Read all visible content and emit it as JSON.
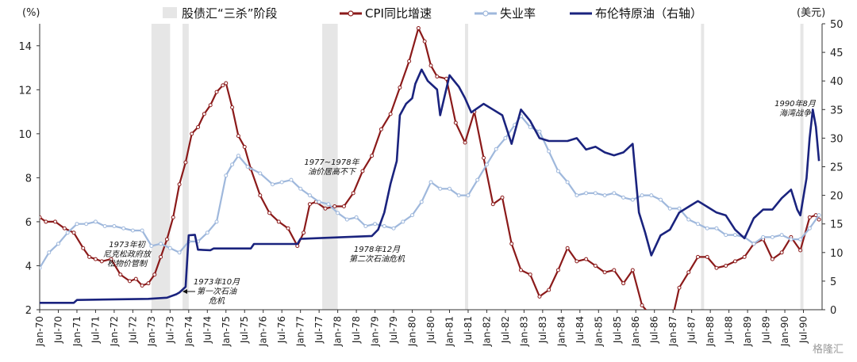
{
  "chart_data": {
    "type": "line",
    "title": "",
    "left_axis": {
      "unit_label": "(%)",
      "ylim": [
        2,
        15
      ],
      "ticks": [
        2,
        4,
        6,
        8,
        10,
        12,
        14
      ]
    },
    "right_axis": {
      "unit_label": "(美元)",
      "ylim": [
        0,
        50
      ],
      "ticks": [
        0,
        5,
        10,
        15,
        20,
        25,
        30,
        35,
        40,
        45,
        50
      ]
    },
    "x_range": [
      "Jan-70",
      "Jan-91"
    ],
    "x_ticks": [
      "Jan-70",
      "Jul-70",
      "Jan-71",
      "Jul-71",
      "Jan-72",
      "Jul-72",
      "Jan-73",
      "Jul-73",
      "Jan-74",
      "Jul-74",
      "Jan-75",
      "Jul-75",
      "Jan-76",
      "Jul-76",
      "Jan-77",
      "Jul-77",
      "Jan-78",
      "Jul-78",
      "Jan-79",
      "Jul-79",
      "Jan-80",
      "Jul-80",
      "Jan-81",
      "Jul-81",
      "Jan-82",
      "Jul-82",
      "Jan-83",
      "Jul-83",
      "Jan-84",
      "Jul-84",
      "Jan-85",
      "Jul-85",
      "Jan-86",
      "Jul-86",
      "Jan-87",
      "Jul-87",
      "Jan-88",
      "Jul-88",
      "Jan-89",
      "Jul-89",
      "Jan-90",
      "Jul-90"
    ],
    "legend": {
      "placement": "top",
      "items": [
        {
          "label": "股债汇“三杀”阶段",
          "kind": "band",
          "color": "#e6e6e6"
        },
        {
          "label": "CPI同比增速",
          "kind": "line-marker",
          "color": "#8b1a1a"
        },
        {
          "label": "失业率",
          "kind": "line-marker",
          "color": "#9fb8dc"
        },
        {
          "label": "布伦特原油（右轴）",
          "kind": "line",
          "color": "#1a237e"
        }
      ]
    },
    "shaded_periods": [
      [
        "1973-01",
        "1973-07"
      ],
      [
        "1973-11",
        "1974-01"
      ],
      [
        "1977-08",
        "1978-01"
      ],
      [
        "1981-06",
        "1981-07"
      ],
      [
        "1987-10",
        "1987-11"
      ],
      [
        "1990-06",
        "1990-07"
      ]
    ],
    "series": [
      {
        "name": "CPI同比增速",
        "axis": "left",
        "color": "#8b1a1a",
        "points": [
          [
            "1970-01",
            6.2
          ],
          [
            "1970-03",
            6.0
          ],
          [
            "1970-06",
            6.0
          ],
          [
            "1970-09",
            5.7
          ],
          [
            "1970-12",
            5.5
          ],
          [
            "1971-03",
            4.8
          ],
          [
            "1971-05",
            4.4
          ],
          [
            "1971-07",
            4.3
          ],
          [
            "1971-09",
            4.2
          ],
          [
            "1971-12",
            4.3
          ],
          [
            "1972-03",
            3.6
          ],
          [
            "1972-06",
            3.3
          ],
          [
            "1972-08",
            3.4
          ],
          [
            "1972-10",
            3.1
          ],
          [
            "1972-12",
            3.2
          ],
          [
            "1973-02",
            3.6
          ],
          [
            "1973-04",
            4.4
          ],
          [
            "1973-06",
            5.2
          ],
          [
            "1973-08",
            6.2
          ],
          [
            "1973-10",
            7.7
          ],
          [
            "1973-12",
            8.7
          ],
          [
            "1974-02",
            10.0
          ],
          [
            "1974-04",
            10.3
          ],
          [
            "1974-06",
            10.9
          ],
          [
            "1974-08",
            11.3
          ],
          [
            "1974-10",
            11.9
          ],
          [
            "1974-12",
            12.2
          ],
          [
            "1975-01",
            12.3
          ],
          [
            "1975-03",
            11.2
          ],
          [
            "1975-05",
            9.9
          ],
          [
            "1975-07",
            9.4
          ],
          [
            "1975-09",
            8.4
          ],
          [
            "1975-12",
            7.2
          ],
          [
            "1976-03",
            6.4
          ],
          [
            "1976-06",
            6.0
          ],
          [
            "1976-09",
            5.7
          ],
          [
            "1976-12",
            4.9
          ],
          [
            "1977-02",
            5.5
          ],
          [
            "1977-04",
            6.8
          ],
          [
            "1977-06",
            6.9
          ],
          [
            "1977-09",
            6.6
          ],
          [
            "1977-12",
            6.7
          ],
          [
            "1978-03",
            6.7
          ],
          [
            "1978-06",
            7.3
          ],
          [
            "1978-09",
            8.3
          ],
          [
            "1978-12",
            9.0
          ],
          [
            "1979-03",
            10.2
          ],
          [
            "1979-06",
            10.9
          ],
          [
            "1979-09",
            12.1
          ],
          [
            "1979-12",
            13.3
          ],
          [
            "1980-03",
            14.8
          ],
          [
            "1980-05",
            14.2
          ],
          [
            "1980-07",
            13.1
          ],
          [
            "1980-09",
            12.6
          ],
          [
            "1980-12",
            12.5
          ],
          [
            "1981-03",
            10.5
          ],
          [
            "1981-06",
            9.6
          ],
          [
            "1981-09",
            11.0
          ],
          [
            "1981-12",
            8.9
          ],
          [
            "1982-03",
            6.8
          ],
          [
            "1982-06",
            7.1
          ],
          [
            "1982-09",
            5.0
          ],
          [
            "1982-12",
            3.8
          ],
          [
            "1983-03",
            3.6
          ],
          [
            "1983-06",
            2.6
          ],
          [
            "1983-09",
            2.9
          ],
          [
            "1983-12",
            3.8
          ],
          [
            "1984-03",
            4.8
          ],
          [
            "1984-06",
            4.2
          ],
          [
            "1984-09",
            4.3
          ],
          [
            "1984-12",
            4.0
          ],
          [
            "1985-03",
            3.7
          ],
          [
            "1985-06",
            3.8
          ],
          [
            "1985-09",
            3.2
          ],
          [
            "1985-12",
            3.8
          ],
          [
            "1986-03",
            2.2
          ],
          [
            "1986-06",
            1.7
          ],
          [
            "1986-09",
            1.8
          ],
          [
            "1986-12",
            1.1
          ],
          [
            "1987-03",
            3.0
          ],
          [
            "1987-06",
            3.7
          ],
          [
            "1987-09",
            4.4
          ],
          [
            "1987-12",
            4.4
          ],
          [
            "1988-03",
            3.9
          ],
          [
            "1988-06",
            4.0
          ],
          [
            "1988-09",
            4.2
          ],
          [
            "1988-12",
            4.4
          ],
          [
            "1989-03",
            5.0
          ],
          [
            "1989-06",
            5.2
          ],
          [
            "1989-09",
            4.3
          ],
          [
            "1989-12",
            4.6
          ],
          [
            "1990-03",
            5.3
          ],
          [
            "1990-06",
            4.7
          ],
          [
            "1990-09",
            6.2
          ],
          [
            "1990-11",
            6.3
          ],
          [
            "1990-12",
            6.1
          ]
        ]
      },
      {
        "name": "失业率",
        "axis": "left",
        "color": "#9fb8dc",
        "points": [
          [
            "1970-01",
            3.9
          ],
          [
            "1970-04",
            4.6
          ],
          [
            "1970-07",
            5.0
          ],
          [
            "1970-10",
            5.5
          ],
          [
            "1971-01",
            5.9
          ],
          [
            "1971-04",
            5.9
          ],
          [
            "1971-07",
            6.0
          ],
          [
            "1971-10",
            5.8
          ],
          [
            "1972-01",
            5.8
          ],
          [
            "1972-04",
            5.7
          ],
          [
            "1972-07",
            5.6
          ],
          [
            "1972-10",
            5.6
          ],
          [
            "1973-01",
            4.9
          ],
          [
            "1973-04",
            5.0
          ],
          [
            "1973-07",
            4.8
          ],
          [
            "1973-10",
            4.6
          ],
          [
            "1974-01",
            5.1
          ],
          [
            "1974-04",
            5.1
          ],
          [
            "1974-07",
            5.5
          ],
          [
            "1974-10",
            6.0
          ],
          [
            "1975-01",
            8.1
          ],
          [
            "1975-03",
            8.6
          ],
          [
            "1975-05",
            9.0
          ],
          [
            "1975-08",
            8.5
          ],
          [
            "1975-12",
            8.2
          ],
          [
            "1976-04",
            7.7
          ],
          [
            "1976-07",
            7.8
          ],
          [
            "1976-10",
            7.9
          ],
          [
            "1977-01",
            7.5
          ],
          [
            "1977-04",
            7.2
          ],
          [
            "1977-07",
            6.9
          ],
          [
            "1977-10",
            6.8
          ],
          [
            "1978-01",
            6.4
          ],
          [
            "1978-04",
            6.1
          ],
          [
            "1978-07",
            6.2
          ],
          [
            "1978-10",
            5.8
          ],
          [
            "1979-01",
            5.9
          ],
          [
            "1979-04",
            5.8
          ],
          [
            "1979-07",
            5.7
          ],
          [
            "1979-10",
            6.0
          ],
          [
            "1980-01",
            6.3
          ],
          [
            "1980-04",
            6.9
          ],
          [
            "1980-07",
            7.8
          ],
          [
            "1980-10",
            7.5
          ],
          [
            "1981-01",
            7.5
          ],
          [
            "1981-04",
            7.2
          ],
          [
            "1981-07",
            7.2
          ],
          [
            "1981-10",
            7.9
          ],
          [
            "1982-01",
            8.6
          ],
          [
            "1982-04",
            9.3
          ],
          [
            "1982-07",
            9.8
          ],
          [
            "1982-10",
            10.4
          ],
          [
            "1982-12",
            10.8
          ],
          [
            "1983-03",
            10.3
          ],
          [
            "1983-06",
            10.1
          ],
          [
            "1983-09",
            9.2
          ],
          [
            "1983-12",
            8.3
          ],
          [
            "1984-03",
            7.8
          ],
          [
            "1984-06",
            7.2
          ],
          [
            "1984-09",
            7.3
          ],
          [
            "1984-12",
            7.3
          ],
          [
            "1985-03",
            7.2
          ],
          [
            "1985-06",
            7.3
          ],
          [
            "1985-09",
            7.1
          ],
          [
            "1985-12",
            7.0
          ],
          [
            "1986-03",
            7.2
          ],
          [
            "1986-06",
            7.2
          ],
          [
            "1986-09",
            7.0
          ],
          [
            "1986-12",
            6.6
          ],
          [
            "1987-03",
            6.6
          ],
          [
            "1987-06",
            6.1
          ],
          [
            "1987-09",
            5.9
          ],
          [
            "1987-12",
            5.7
          ],
          [
            "1988-03",
            5.7
          ],
          [
            "1988-06",
            5.4
          ],
          [
            "1988-09",
            5.4
          ],
          [
            "1988-12",
            5.3
          ],
          [
            "1989-03",
            5.0
          ],
          [
            "1989-06",
            5.3
          ],
          [
            "1989-09",
            5.3
          ],
          [
            "1989-12",
            5.4
          ],
          [
            "1990-03",
            5.2
          ],
          [
            "1990-06",
            5.2
          ],
          [
            "1990-09",
            5.7
          ],
          [
            "1990-12",
            6.3
          ]
        ]
      },
      {
        "name": "布伦特原油（右轴）",
        "axis": "right",
        "color": "#1a237e",
        "points": [
          [
            "1970-01",
            1.2
          ],
          [
            "1970-12",
            1.2
          ],
          [
            "1971-01",
            1.7
          ],
          [
            "1972-12",
            1.9
          ],
          [
            "1973-06",
            2.1
          ],
          [
            "1973-09",
            2.7
          ],
          [
            "1973-10",
            3.0
          ],
          [
            "1973-12",
            4.0
          ],
          [
            "1974-01",
            13.0
          ],
          [
            "1974-03",
            13.1
          ],
          [
            "1974-04",
            10.5
          ],
          [
            "1974-08",
            10.4
          ],
          [
            "1974-09",
            10.7
          ],
          [
            "1975-09",
            10.7
          ],
          [
            "1975-10",
            11.5
          ],
          [
            "1976-12",
            11.5
          ],
          [
            "1977-01",
            12.4
          ],
          [
            "1978-12",
            12.9
          ],
          [
            "1979-02",
            14.0
          ],
          [
            "1979-04",
            17.0
          ],
          [
            "1979-06",
            22.0
          ],
          [
            "1979-08",
            26.0
          ],
          [
            "1979-09",
            34.0
          ],
          [
            "1979-11",
            36.0
          ],
          [
            "1980-01",
            37.0
          ],
          [
            "1980-02",
            39.5
          ],
          [
            "1980-04",
            42.0
          ],
          [
            "1980-06",
            40.0
          ],
          [
            "1980-09",
            38.5
          ],
          [
            "1980-10",
            34.0
          ],
          [
            "1981-01",
            41.0
          ],
          [
            "1981-04",
            39.0
          ],
          [
            "1981-06",
            37.0
          ],
          [
            "1981-08",
            34.5
          ],
          [
            "1981-12",
            36.0
          ],
          [
            "1982-03",
            35.0
          ],
          [
            "1982-06",
            34.0
          ],
          [
            "1982-09",
            29.0
          ],
          [
            "1982-12",
            35.0
          ],
          [
            "1983-03",
            33.0
          ],
          [
            "1983-06",
            30.0
          ],
          [
            "1983-09",
            29.5
          ],
          [
            "1983-12",
            29.5
          ],
          [
            "1984-03",
            29.5
          ],
          [
            "1984-06",
            30.0
          ],
          [
            "1984-09",
            28.0
          ],
          [
            "1984-12",
            28.5
          ],
          [
            "1985-03",
            27.5
          ],
          [
            "1985-06",
            27.0
          ],
          [
            "1985-09",
            27.5
          ],
          [
            "1985-12",
            29.0
          ],
          [
            "1986-02",
            17.0
          ],
          [
            "1986-04",
            13.5
          ],
          [
            "1986-06",
            9.5
          ],
          [
            "1986-09",
            13.0
          ],
          [
            "1986-12",
            14.0
          ],
          [
            "1987-03",
            17.0
          ],
          [
            "1987-06",
            18.0
          ],
          [
            "1987-09",
            19.0
          ],
          [
            "1987-12",
            18.0
          ],
          [
            "1988-03",
            17.0
          ],
          [
            "1988-06",
            16.5
          ],
          [
            "1988-09",
            14.0
          ],
          [
            "1988-12",
            12.5
          ],
          [
            "1989-03",
            16.0
          ],
          [
            "1989-06",
            17.5
          ],
          [
            "1989-09",
            17.5
          ],
          [
            "1989-12",
            19.5
          ],
          [
            "1990-03",
            21.0
          ],
          [
            "1990-05",
            17.5
          ],
          [
            "1990-06",
            16.5
          ],
          [
            "1990-08",
            23.0
          ],
          [
            "1990-09",
            30.0
          ],
          [
            "1990-10",
            35.0
          ],
          [
            "1990-11",
            32.0
          ],
          [
            "1990-12",
            26.0
          ]
        ]
      }
    ],
    "annotations": [
      {
        "lines": [
          "1973年初",
          "尼克松政府放",
          "松物价管制"
        ]
      },
      {
        "lines": [
          "1973年10月",
          "第一次石油",
          "危机"
        ],
        "arrow": true
      },
      {
        "lines": [
          "1977~1978年",
          "油价居高不下"
        ]
      },
      {
        "lines": [
          "1978年12月",
          "第二次石油危机"
        ]
      },
      {
        "lines": [
          "1990年8月",
          "海湾战争"
        ]
      }
    ],
    "watermark": "格隆汇"
  }
}
